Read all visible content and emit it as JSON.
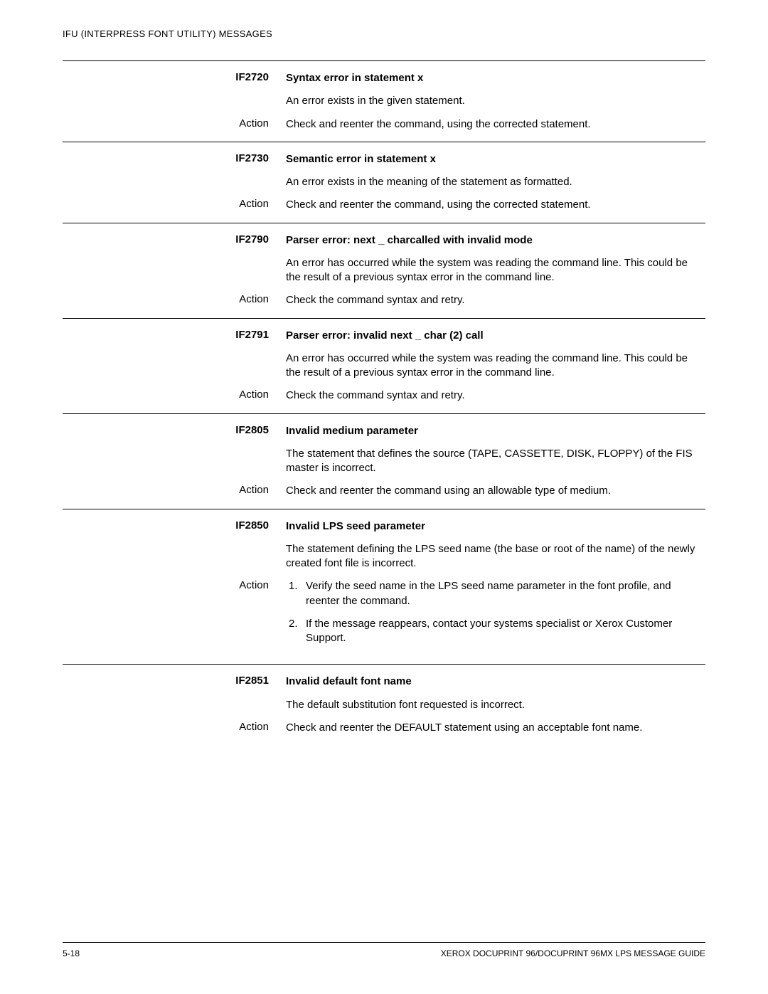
{
  "header": "IFU (INTERPRESS FONT UTILITY) MESSAGES",
  "action_label": "Action",
  "entries": [
    {
      "code": "IF2720",
      "title": "Syntax error in statement x",
      "desc": "An error exists in the given statement.",
      "action": "Check and reenter the command, using the corrected statement."
    },
    {
      "code": "IF2730",
      "title": "Semantic error in statement x",
      "desc": "An error exists in the meaning of the statement as formatted.",
      "action": "Check and reenter the command, using the corrected statement."
    },
    {
      "code": "IF2790",
      "title": "Parser error: next _ charcalled with invalid mode",
      "desc": "An error has occurred while the system was reading the command line. This could be the result of a previous syntax error in the command line.",
      "action": "Check the command syntax and retry."
    },
    {
      "code": "IF2791",
      "title": "Parser error: invalid next _ char (2) call",
      "desc": "An error has occurred while the system was reading the command line. This could be the result of a previous syntax error in the command line.",
      "action": "Check the command syntax and retry."
    },
    {
      "code": "IF2805",
      "title": "Invalid medium parameter",
      "desc": "The statement that defines the source (TAPE, CASSETTE, DISK, FLOPPY) of the FIS master is incorrect.",
      "action": "Check and reenter the command using an allowable type of medium."
    },
    {
      "code": "IF2850",
      "title": "Invalid LPS seed parameter",
      "desc": "The statement defining the LPS seed name (the base or root of the name) of the newly created font file is incorrect.",
      "action_list": [
        "Verify the seed name in the LPS seed name parameter in the font profile, and reenter the command.",
        "If the message reappears, contact your systems specialist or Xerox Customer Support."
      ]
    },
    {
      "code": "IF2851",
      "title": "Invalid default font name",
      "desc": "The default substitution font requested is incorrect.",
      "action": "Check and reenter the DEFAULT statement using an acceptable font name."
    }
  ],
  "footer": {
    "left": "5-18",
    "right": "XEROX DOCUPRINT 96/DOCUPRINT 96MX LPS MESSAGE GUIDE"
  }
}
